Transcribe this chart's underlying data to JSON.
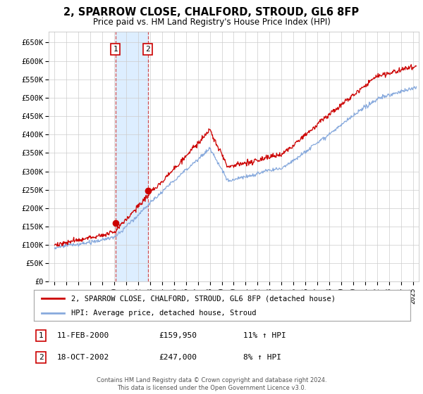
{
  "title": "2, SPARROW CLOSE, CHALFORD, STROUD, GL6 8FP",
  "subtitle": "Price paid vs. HM Land Registry's House Price Index (HPI)",
  "ylim": [
    0,
    680000
  ],
  "yticks": [
    0,
    50000,
    100000,
    150000,
    200000,
    250000,
    300000,
    350000,
    400000,
    450000,
    500000,
    550000,
    600000,
    650000
  ],
  "xlim_start": 1994.5,
  "xlim_end": 2025.5,
  "sale1_date": 2000.1,
  "sale1_price": 159950,
  "sale2_date": 2002.8,
  "sale2_price": 247000,
  "line1_color": "#cc0000",
  "line2_color": "#88aadd",
  "vline_color": "#cc3333",
  "shade_color": "#ddeeff",
  "grid_color": "#cccccc",
  "background_color": "#ffffff",
  "legend1_label": "2, SPARROW CLOSE, CHALFORD, STROUD, GL6 8FP (detached house)",
  "legend2_label": "HPI: Average price, detached house, Stroud",
  "annotation1_date": "11-FEB-2000",
  "annotation1_price": "£159,950",
  "annotation1_hpi": "11% ↑ HPI",
  "annotation2_date": "18-OCT-2002",
  "annotation2_price": "£247,000",
  "annotation2_hpi": "8% ↑ HPI",
  "footer": "Contains HM Land Registry data © Crown copyright and database right 2024.\nThis data is licensed under the Open Government Licence v3.0."
}
